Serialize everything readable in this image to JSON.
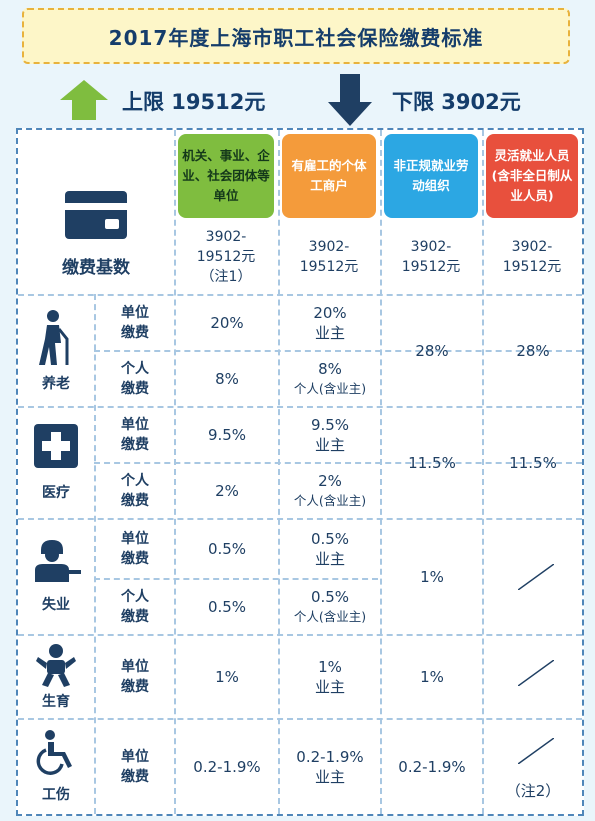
{
  "title": "2017年度上海市职工社会保险缴费标准",
  "upper_limit": "上限 19512元",
  "lower_limit": "下限 3902元",
  "columns": [
    {
      "header": "机关、事业、企业、社会团体等单位",
      "base": "3902-19512元（注1）",
      "color": "#7fbd3f"
    },
    {
      "header": "有雇工的个体工商户",
      "base": "3902-19512元",
      "color": "#f49b3b"
    },
    {
      "header": "非正规就业劳动组织",
      "base": "3902-19512元",
      "color": "#2ca7e3"
    },
    {
      "header": "灵活就业人员(含非全日制从业人员)",
      "base": "3902-19512元",
      "color": "#e8503d"
    }
  ],
  "base_label": "缴费基数",
  "unit_label": "单位缴费",
  "personal_label": "个人缴费",
  "rows": {
    "pension": {
      "label": "养老",
      "icon": "elderly-person-icon",
      "c1_unit": "20%",
      "c1_personal": "8%",
      "c2_unit_a": "20%",
      "c2_unit_b": "业主",
      "c2_personal_a": "8%",
      "c2_personal_b": "个人(含业主)",
      "c3": "28%",
      "c4": "28%"
    },
    "medical": {
      "label": "医疗",
      "icon": "medical-cross-icon",
      "c1_unit": "9.5%",
      "c1_personal": "2%",
      "c2_unit_a": "9.5%",
      "c2_unit_b": "业主",
      "c2_personal_a": "2%",
      "c2_personal_b": "个人(含业主)",
      "c3": "11.5%",
      "c4": "11.5%"
    },
    "unemployment": {
      "label": "失业",
      "icon": "person-at-desk-icon",
      "c1_unit": "0.5%",
      "c1_personal": "0.5%",
      "c2_unit_a": "0.5%",
      "c2_unit_b": "业主",
      "c2_personal_a": "0.5%",
      "c2_personal_b": "个人(含业主)",
      "c3": "1%"
    },
    "maternity": {
      "label": "生育",
      "icon": "baby-icon",
      "c1_unit": "1%",
      "c2_unit_a": "1%",
      "c2_unit_b": "业主",
      "c3": "1%"
    },
    "injury": {
      "label": "工伤",
      "icon": "wheelchair-icon",
      "c1_unit": "0.2-1.9%",
      "c2_unit_a": "0.2-1.9%",
      "c2_unit_b": "业主",
      "c3": "0.2-1.9%",
      "c4": "（注2）"
    }
  },
  "colors": {
    "title_bg": "#fdf6c8",
    "title_border": "#e8b23c",
    "up_arrow": "#7fbd3f",
    "down_arrow": "#1f3f63",
    "text": "#1f3f63"
  }
}
